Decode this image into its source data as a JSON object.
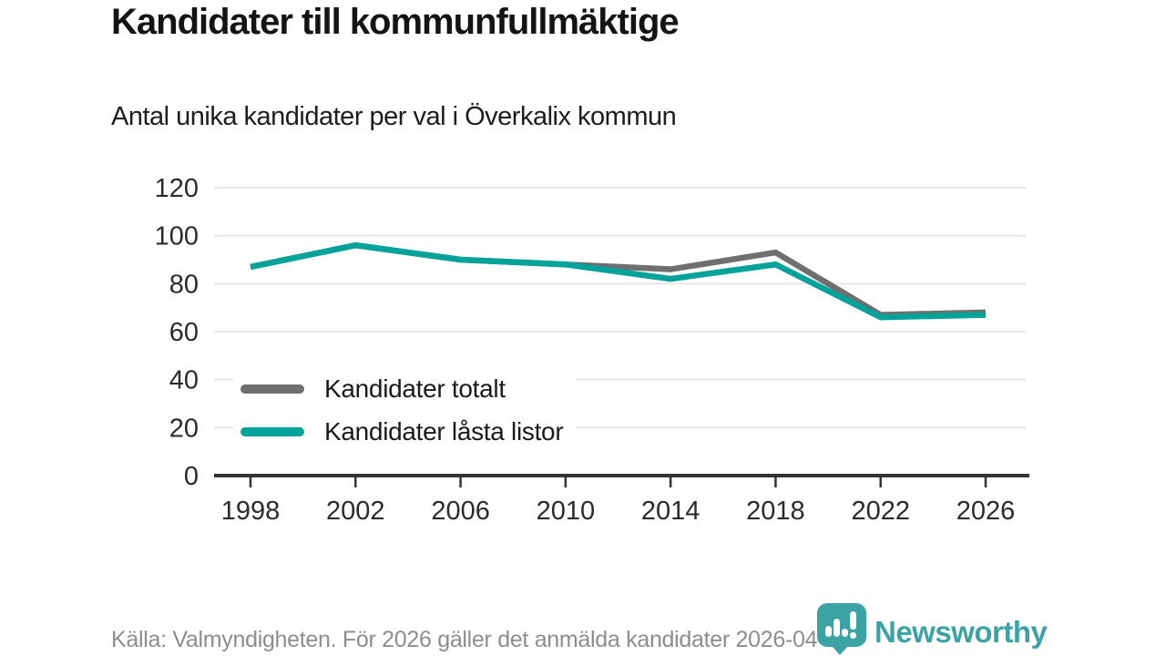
{
  "title": "Kandidater till kommunfullmäktige",
  "subtitle": "Antal unika kandidater per val i Överkalix kommun",
  "colors": {
    "total_line": "#6f6f6f",
    "locked_line": "#00a39a",
    "gridline": "#e7e7e7",
    "axis": "#333333",
    "tick_label": "#2b2b2b",
    "footer_text": "#8d8d8d",
    "logo_teal": "#3ba3a3"
  },
  "chart_data": {
    "type": "line",
    "x": [
      1998,
      2002,
      2006,
      2010,
      2014,
      2018,
      2022,
      2026
    ],
    "series": [
      {
        "name": "Kandidater totalt",
        "color_key": "total_line",
        "values": [
          87,
          96,
          90,
          88,
          86,
          93,
          67,
          68
        ]
      },
      {
        "name": "Kandidater låsta listor",
        "color_key": "locked_line",
        "values": [
          87,
          96,
          90,
          88,
          82,
          88,
          66,
          67
        ]
      }
    ],
    "title": "Kandidater till kommunfullmäktige",
    "subtitle": "Antal unika kandidater per val i Överkalix kommun",
    "xlabel": "",
    "ylabel": "",
    "ylim": [
      0,
      120
    ],
    "yticks": [
      0,
      20,
      40,
      60,
      80,
      100,
      120
    ],
    "grid": "horizontal",
    "legend_position": "inside-left"
  },
  "legend": {
    "items": [
      {
        "label": "Kandidater totalt"
      },
      {
        "label": "Kandidater låsta listor"
      }
    ]
  },
  "footer": {
    "source": "Källa: Valmyndigheten. För 2026 gäller det anmälda kandidater 2026-04-10."
  },
  "logo": {
    "text": "Newsworthy",
    "icon": "newsworthy-bars-exclamation-bubble"
  }
}
